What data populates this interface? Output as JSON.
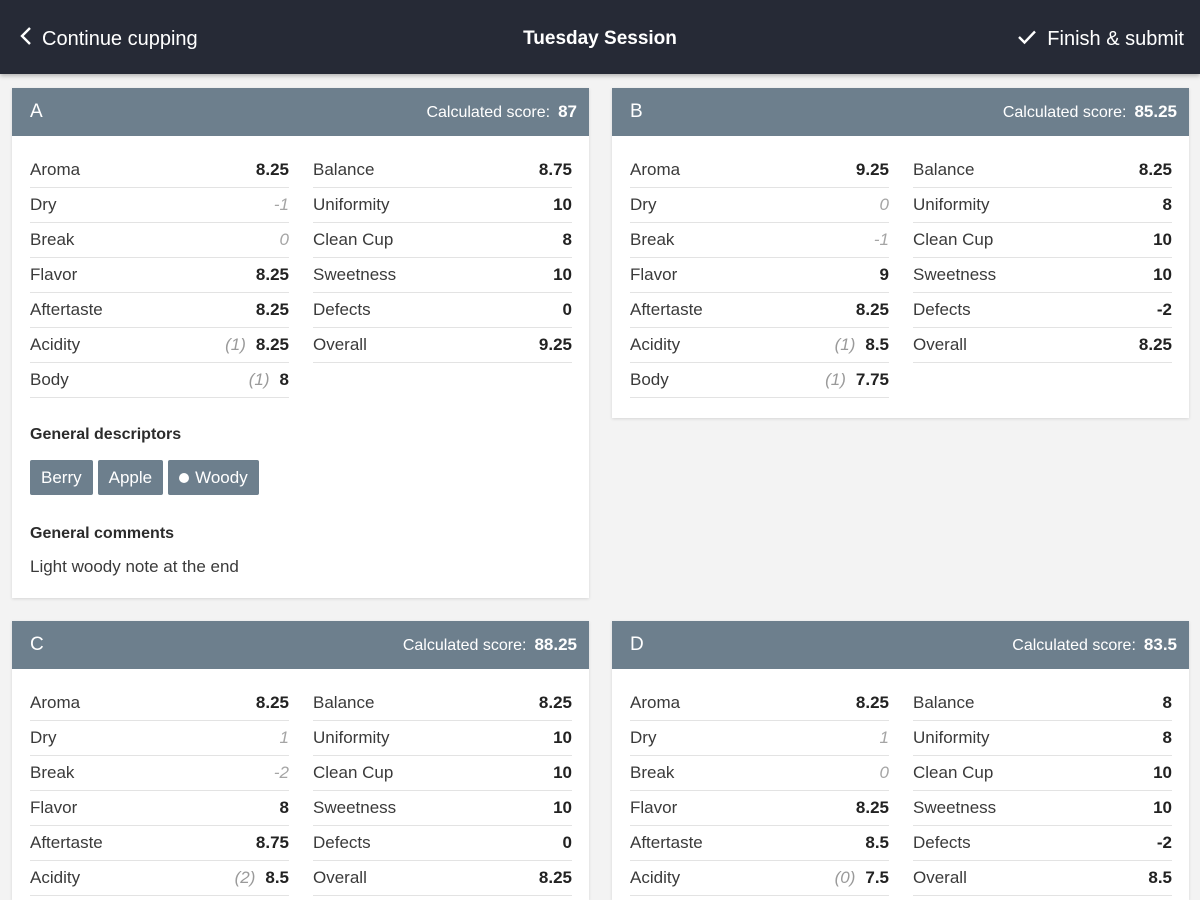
{
  "header": {
    "back_label": "Continue cupping",
    "title": "Tuesday Session",
    "finish_label": "Finish & submit"
  },
  "score_label": "Calculated score:",
  "descriptors_title": "General descriptors",
  "comments_title": "General comments",
  "cards": [
    {
      "letter": "A",
      "score": "87",
      "left": [
        {
          "name": "Aroma",
          "value": "8.25"
        },
        {
          "name": "Dry",
          "value": "-1",
          "muted": true
        },
        {
          "name": "Break",
          "value": "0",
          "muted": true
        },
        {
          "name": "Flavor",
          "value": "8.25"
        },
        {
          "name": "Aftertaste",
          "value": "8.25"
        },
        {
          "name": "Acidity",
          "value": "8.25",
          "intensity": "(1)"
        },
        {
          "name": "Body",
          "value": "8",
          "intensity": "(1)"
        }
      ],
      "right": [
        {
          "name": "Balance",
          "value": "8.75"
        },
        {
          "name": "Uniformity",
          "value": "10"
        },
        {
          "name": "Clean Cup",
          "value": "8"
        },
        {
          "name": "Sweetness",
          "value": "10"
        },
        {
          "name": "Defects",
          "value": "0"
        },
        {
          "name": "Overall",
          "value": "9.25"
        }
      ],
      "descriptors": [
        {
          "label": "Berry"
        },
        {
          "label": "Apple"
        },
        {
          "label": "Woody",
          "dot": true
        }
      ],
      "comment": "Light woody note at the end"
    },
    {
      "letter": "B",
      "score": "85.25",
      "left": [
        {
          "name": "Aroma",
          "value": "9.25"
        },
        {
          "name": "Dry",
          "value": "0",
          "muted": true
        },
        {
          "name": "Break",
          "value": "-1",
          "muted": true
        },
        {
          "name": "Flavor",
          "value": "9"
        },
        {
          "name": "Aftertaste",
          "value": "8.25"
        },
        {
          "name": "Acidity",
          "value": "8.5",
          "intensity": "(1)"
        },
        {
          "name": "Body",
          "value": "7.75",
          "intensity": "(1)"
        }
      ],
      "right": [
        {
          "name": "Balance",
          "value": "8.25"
        },
        {
          "name": "Uniformity",
          "value": "8"
        },
        {
          "name": "Clean Cup",
          "value": "10"
        },
        {
          "name": "Sweetness",
          "value": "10"
        },
        {
          "name": "Defects",
          "value": "-2"
        },
        {
          "name": "Overall",
          "value": "8.25"
        }
      ]
    },
    {
      "letter": "C",
      "score": "88.25",
      "left": [
        {
          "name": "Aroma",
          "value": "8.25"
        },
        {
          "name": "Dry",
          "value": "1",
          "muted": true
        },
        {
          "name": "Break",
          "value": "-2",
          "muted": true
        },
        {
          "name": "Flavor",
          "value": "8"
        },
        {
          "name": "Aftertaste",
          "value": "8.75"
        },
        {
          "name": "Acidity",
          "value": "8.5",
          "intensity": "(2)"
        }
      ],
      "right": [
        {
          "name": "Balance",
          "value": "8.25"
        },
        {
          "name": "Uniformity",
          "value": "10"
        },
        {
          "name": "Clean Cup",
          "value": "10"
        },
        {
          "name": "Sweetness",
          "value": "10"
        },
        {
          "name": "Defects",
          "value": "0"
        },
        {
          "name": "Overall",
          "value": "8.25"
        }
      ]
    },
    {
      "letter": "D",
      "score": "83.5",
      "left": [
        {
          "name": "Aroma",
          "value": "8.25"
        },
        {
          "name": "Dry",
          "value": "1",
          "muted": true
        },
        {
          "name": "Break",
          "value": "0",
          "muted": true
        },
        {
          "name": "Flavor",
          "value": "8.25"
        },
        {
          "name": "Aftertaste",
          "value": "8.5"
        },
        {
          "name": "Acidity",
          "value": "7.5",
          "intensity": "(0)"
        }
      ],
      "right": [
        {
          "name": "Balance",
          "value": "8"
        },
        {
          "name": "Uniformity",
          "value": "8"
        },
        {
          "name": "Clean Cup",
          "value": "10"
        },
        {
          "name": "Sweetness",
          "value": "10"
        },
        {
          "name": "Defects",
          "value": "-2"
        },
        {
          "name": "Overall",
          "value": "8.5"
        }
      ]
    }
  ]
}
